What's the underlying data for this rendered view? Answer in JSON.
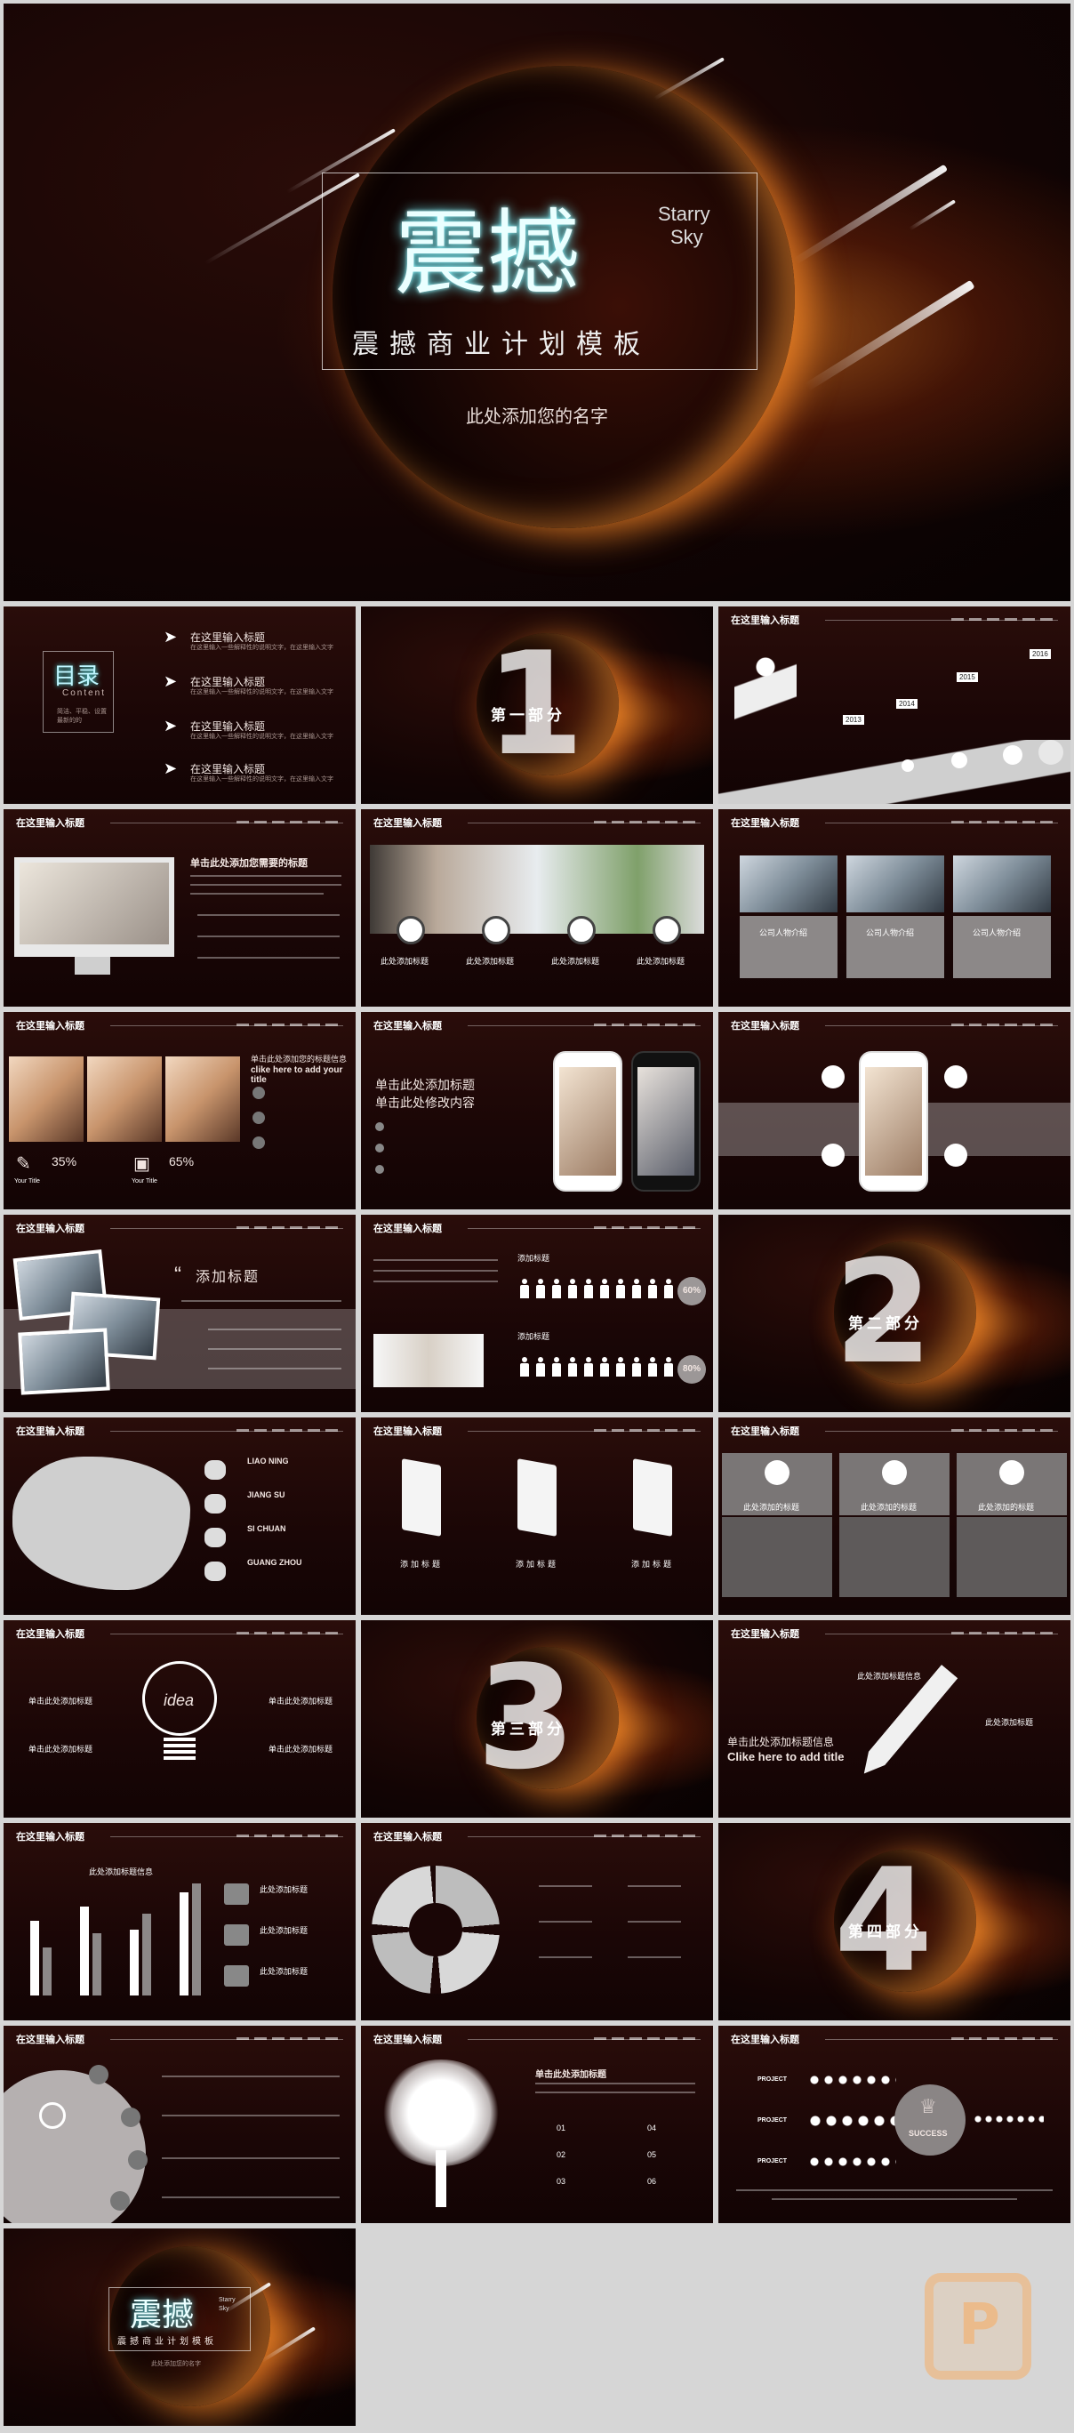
{
  "cover": {
    "title": "震撼",
    "side_text_1": "Starry",
    "side_text_2": "Sky",
    "subtitle": "震撼商业计划模板",
    "author": "此处添加您的名字"
  },
  "toc": {
    "title": "目录",
    "title_en": "Content",
    "item_label": "在这里输入标题",
    "item_desc": "在这里输入一些解释性的说明文字，在这里输入文字",
    "left_note": "简洁、平稳、设置最新的的"
  },
  "common": {
    "slide_header": "在这里输入标题",
    "slide_header_alt": "在这里输入标题"
  },
  "part1": {
    "number": "1",
    "label": "第一部分"
  },
  "part2": {
    "number": "2",
    "label": "第二部分"
  },
  "part3": {
    "number": "3",
    "label": "第三部分"
  },
  "part4": {
    "number": "4",
    "label": "第四部分"
  },
  "timeline": {
    "years": [
      "2013",
      "2014",
      "2015",
      "2016"
    ]
  },
  "slide_mac": {
    "title": "单击此处添加您需要的标题"
  },
  "slide_team": {
    "labels": [
      "此处添加标题",
      "此处添加标题",
      "此处添加标题",
      "此处添加标题"
    ]
  },
  "slide_profiles": {
    "names": [
      "公司人物介绍",
      "公司人物介绍",
      "公司人物介绍"
    ]
  },
  "slide_percent": {
    "title": "单击此处添加您的标题信息",
    "title_en": "clike here to add your title",
    "item1_pct": "35%",
    "item2_pct": "65%",
    "item1_label": "Your Title",
    "item2_label": "Your Title"
  },
  "slide_phones": {
    "title_1": "单击此处添加标题",
    "title_2": "单击此处修改内容"
  },
  "slide_add": {
    "title": "添加标题"
  },
  "slide_people": {
    "label_1": "添加标题",
    "label_2": "添加标题",
    "pct_1": "60%",
    "pct_2": "80%"
  },
  "slide_map": {
    "regions": [
      "LIAO NING",
      "JIANG SU",
      "SI CHUAN",
      "GUANG ZHOU"
    ]
  },
  "slide_boards": {
    "labels": [
      "添加标题",
      "添加标题",
      "添加标题"
    ]
  },
  "slide_cards": {
    "labels": [
      "此处添加的标题",
      "此处添加的标题",
      "此处添加的标题"
    ]
  },
  "slide_idea": {
    "bulb_text": "idea",
    "labels": [
      "单击此处添加标题",
      "单击此处添加标题",
      "单击此处添加标题",
      "单击此处添加标题"
    ]
  },
  "slide_pen": {
    "title": "单击此处添加标题信息",
    "title_en": "Clike here to add title",
    "label_1": "此处添加标题信息",
    "label_2": "此处添加标题"
  },
  "slide_barchart": {
    "title": "此处添加标题信息",
    "labels": [
      "此处添加标题",
      "此处添加标题",
      "此处添加标题"
    ]
  },
  "slide_tree": {
    "title": "单击此处添加标题",
    "nums": [
      "01",
      "02",
      "03",
      "04",
      "05",
      "06"
    ]
  },
  "slide_success": {
    "project_labels": [
      "PROJECT",
      "PROJECT",
      "PROJECT"
    ],
    "badge": "SUCCESS"
  },
  "end": {
    "title": "震撼",
    "side_text": "Starry Sky",
    "subtitle": "震撼商业计划模板",
    "author": "此处添加您的名字"
  },
  "watermark": {
    "letter": "P"
  }
}
